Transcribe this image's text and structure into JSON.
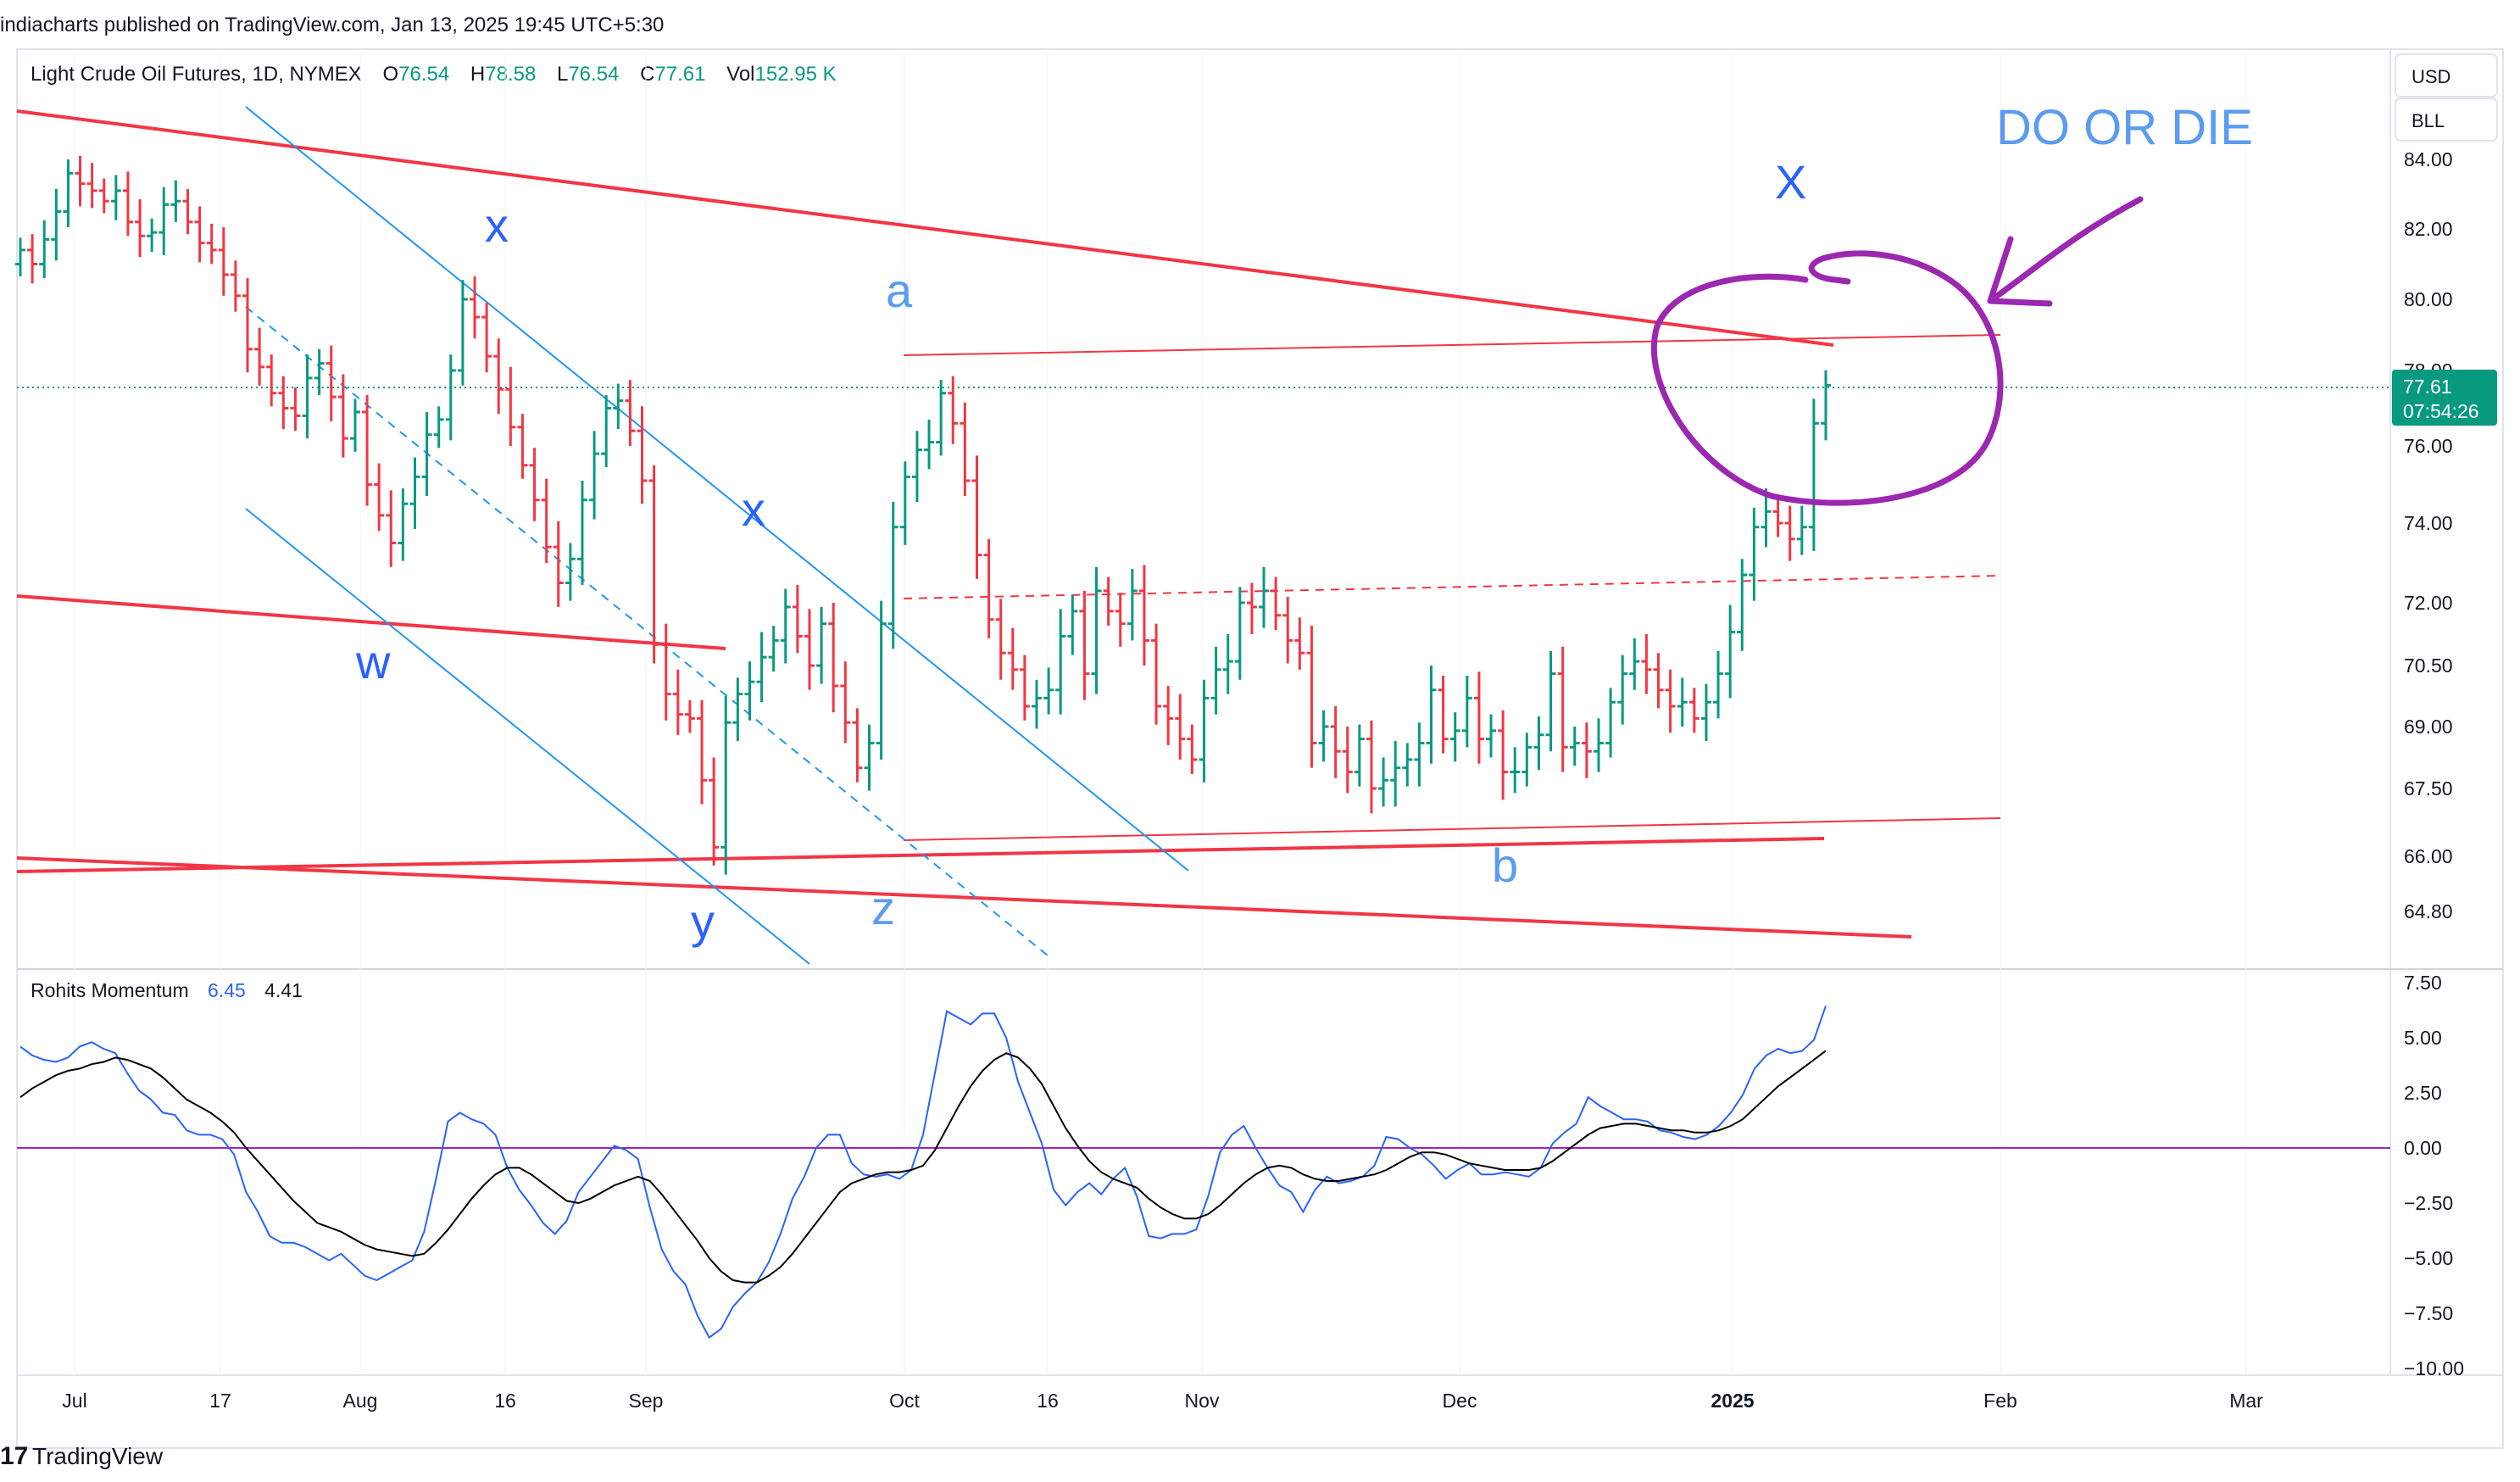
{
  "header": {
    "published_line": "indiacharts published on TradingView.com, Jan 13, 2025 19:45 UTC+5:30"
  },
  "legend": {
    "symbol": "Light Crude Oil Futures, 1D, NYMEX",
    "o_label": "O",
    "o_value": "76.54",
    "h_label": "H",
    "h_value": "78.58",
    "l_label": "L",
    "l_value": "76.54",
    "c_label": "C",
    "c_value": "77.61",
    "vol_label": "Vol",
    "vol_value": "152.95 K"
  },
  "buttons": {
    "currency": "USD",
    "unit": "BLL"
  },
  "price_tag": {
    "price": "77.61",
    "countdown": "07:54:26"
  },
  "indicator": {
    "name": "Rohits Momentum",
    "value1": "6.45",
    "value2": "4.41"
  },
  "footer": {
    "brand": "TradingView"
  },
  "annotations": {
    "do_or_die": "DO OR DIE",
    "wave_X": "X",
    "wave_a": "a",
    "wave_b": "b",
    "wave_w": "w",
    "wave_x1": "x",
    "wave_x2": "x",
    "wave_y": "y",
    "wave_z": "z"
  },
  "colors": {
    "up": "#089981",
    "down": "#f23645",
    "trend": "#f23645",
    "channel": "#2196f3",
    "wave_dark": "#2962ff",
    "wave_light": "#5b9cf0",
    "marker": "#9c27b0",
    "momentum": "#2962ff",
    "signal": "#000000"
  },
  "chart_data": [
    {
      "type": "ohlc",
      "title": "Light Crude Oil Futures, 1D, NYMEX",
      "y_ticks": [
        "84.00",
        "82.00",
        "80.00",
        "78.00",
        "76.00",
        "74.00",
        "72.00",
        "70.50",
        "69.00",
        "67.50",
        "66.00",
        "64.80"
      ],
      "x_ticks": [
        "Jul",
        "17",
        "Aug",
        "16",
        "Sep",
        "Oct",
        "16",
        "Nov",
        "Dec",
        "2025",
        "Feb",
        "Mar"
      ],
      "ylim": [
        63.5,
        86.0
      ],
      "last_close": 77.61,
      "closes": [
        81.4,
        81.0,
        81.7,
        82.5,
        83.6,
        83.3,
        83.1,
        82.8,
        83.1,
        82.2,
        81.8,
        81.9,
        82.7,
        82.8,
        82.2,
        81.6,
        81.4,
        80.7,
        80.1,
        78.6,
        78.1,
        77.4,
        77.0,
        76.8,
        77.8,
        78.2,
        77.3,
        76.2,
        76.9,
        75.0,
        74.2,
        73.5,
        74.5,
        75.2,
        76.3,
        76.7,
        78.0,
        80.0,
        79.5,
        78.4,
        77.5,
        76.5,
        75.5,
        74.6,
        73.4,
        72.5,
        73.1,
        74.6,
        75.8,
        77.0,
        77.2,
        76.4,
        75.1,
        71.0,
        69.8,
        69.3,
        69.2,
        67.7,
        66.2,
        69.1,
        69.8,
        70.1,
        70.7,
        71.1,
        71.9,
        71.2,
        70.5,
        71.5,
        70.0,
        69.1,
        68.0,
        68.6,
        71.5,
        73.9,
        75.2,
        75.9,
        76.1,
        77.4,
        76.6,
        75.1,
        73.2,
        71.6,
        70.8,
        70.4,
        69.5,
        69.7,
        69.9,
        71.2,
        71.8,
        70.3,
        72.3,
        71.8,
        71.5,
        72.3,
        71.1,
        69.5,
        69.2,
        68.7,
        68.2,
        69.7,
        70.4,
        70.6,
        72.0,
        71.9,
        72.3,
        71.7,
        71.1,
        70.8,
        68.6,
        69.0,
        68.4,
        67.9,
        68.7,
        67.5,
        67.7,
        68.0,
        68.2,
        68.6,
        69.9,
        68.7,
        68.9,
        69.7,
        68.7,
        68.9,
        67.9,
        67.9,
        68.5,
        68.8,
        70.3,
        68.5,
        68.6,
        68.4,
        68.6,
        69.6,
        70.3,
        70.6,
        70.4,
        69.9,
        69.5,
        69.6,
        69.2,
        69.6,
        70.3,
        71.3,
        72.7,
        73.9,
        74.3,
        74.0,
        73.6,
        73.9,
        76.6,
        77.61
      ]
    },
    {
      "type": "line",
      "title": "Rohits Momentum",
      "y_ticks": [
        "7.50",
        "5.00",
        "2.50",
        "0.00",
        "−2.50",
        "−5.00",
        "−7.50",
        "−10.00"
      ],
      "ylim": [
        -10.0,
        7.5
      ],
      "series": [
        {
          "name": "6.45",
          "values": [
            4.6,
            4.2,
            4.0,
            3.9,
            4.1,
            4.6,
            4.8,
            4.5,
            4.3,
            3.4,
            2.6,
            2.2,
            1.6,
            1.5,
            0.8,
            0.6,
            0.6,
            0.4,
            -0.3,
            -2.0,
            -2.9,
            -4.0,
            -4.3,
            -4.3,
            -4.5,
            -4.8,
            -5.1,
            -4.8,
            -5.3,
            -5.8,
            -6.0,
            -5.7,
            -5.4,
            -5.1,
            -3.8,
            -1.4,
            1.2,
            1.6,
            1.3,
            1.1,
            0.6,
            -0.9,
            -1.9,
            -2.6,
            -3.4,
            -3.9,
            -3.3,
            -2.0,
            -1.3,
            -0.6,
            0.1,
            -0.1,
            -0.5,
            -2.7,
            -4.6,
            -5.6,
            -6.2,
            -7.6,
            -8.6,
            -8.2,
            -7.2,
            -6.6,
            -6.1,
            -5.2,
            -3.9,
            -2.3,
            -1.3,
            0.0,
            0.6,
            0.6,
            -0.7,
            -1.2,
            -1.3,
            -1.2,
            -1.4,
            -1.0,
            0.6,
            3.4,
            6.2,
            5.9,
            5.6,
            6.1,
            6.1,
            5.0,
            3.0,
            1.6,
            0.2,
            -1.9,
            -2.6,
            -2.0,
            -1.6,
            -2.1,
            -1.4,
            -0.9,
            -2.2,
            -4.0,
            -4.1,
            -3.9,
            -3.9,
            -3.7,
            -2.2,
            -0.2,
            0.6,
            1.0,
            0.0,
            -0.9,
            -1.7,
            -2.0,
            -2.9,
            -1.9,
            -1.3,
            -1.6,
            -1.5,
            -1.3,
            -0.8,
            0.5,
            0.4,
            0.0,
            -0.3,
            -0.8,
            -1.4,
            -1.0,
            -0.7,
            -1.2,
            -1.2,
            -1.1,
            -1.2,
            -1.3,
            -0.9,
            0.2,
            0.7,
            1.1,
            2.3,
            1.9,
            1.6,
            1.3,
            1.3,
            1.2,
            0.8,
            0.7,
            0.5,
            0.4,
            0.6,
            1.0,
            1.6,
            2.4,
            3.6,
            4.2,
            4.5,
            4.3,
            4.4,
            4.9,
            6.45
          ]
        },
        {
          "name": "4.41",
          "values": [
            2.3,
            2.7,
            3.0,
            3.3,
            3.5,
            3.6,
            3.8,
            3.9,
            4.1,
            4.0,
            3.8,
            3.6,
            3.2,
            2.7,
            2.2,
            1.9,
            1.6,
            1.2,
            0.7,
            0.0,
            -0.6,
            -1.2,
            -1.8,
            -2.4,
            -2.9,
            -3.4,
            -3.6,
            -3.8,
            -4.1,
            -4.4,
            -4.6,
            -4.7,
            -4.8,
            -4.9,
            -4.8,
            -4.3,
            -3.7,
            -3.0,
            -2.3,
            -1.7,
            -1.2,
            -0.9,
            -0.9,
            -1.2,
            -1.6,
            -2.0,
            -2.4,
            -2.5,
            -2.3,
            -2.0,
            -1.7,
            -1.5,
            -1.3,
            -1.5,
            -2.1,
            -2.8,
            -3.5,
            -4.2,
            -5.0,
            -5.6,
            -6.0,
            -6.1,
            -6.1,
            -5.8,
            -5.4,
            -4.8,
            -4.1,
            -3.4,
            -2.7,
            -2.0,
            -1.6,
            -1.4,
            -1.2,
            -1.1,
            -1.1,
            -1.0,
            -0.8,
            -0.1,
            0.9,
            1.9,
            2.8,
            3.5,
            4.0,
            4.3,
            4.1,
            3.6,
            2.9,
            1.9,
            0.9,
            0.1,
            -0.6,
            -1.1,
            -1.4,
            -1.6,
            -1.8,
            -2.3,
            -2.7,
            -3.0,
            -3.2,
            -3.2,
            -3.0,
            -2.6,
            -2.1,
            -1.6,
            -1.2,
            -0.9,
            -0.8,
            -0.9,
            -1.2,
            -1.4,
            -1.5,
            -1.5,
            -1.4,
            -1.3,
            -1.2,
            -1.0,
            -0.7,
            -0.4,
            -0.2,
            -0.2,
            -0.3,
            -0.5,
            -0.7,
            -0.8,
            -0.9,
            -1.0,
            -1.0,
            -1.0,
            -0.9,
            -0.6,
            -0.2,
            0.2,
            0.6,
            0.9,
            1.0,
            1.1,
            1.1,
            1.0,
            0.9,
            0.8,
            0.8,
            0.7,
            0.7,
            0.8,
            1.0,
            1.3,
            1.8,
            2.3,
            2.8,
            3.2,
            3.6,
            4.0,
            4.41
          ]
        }
      ]
    }
  ]
}
